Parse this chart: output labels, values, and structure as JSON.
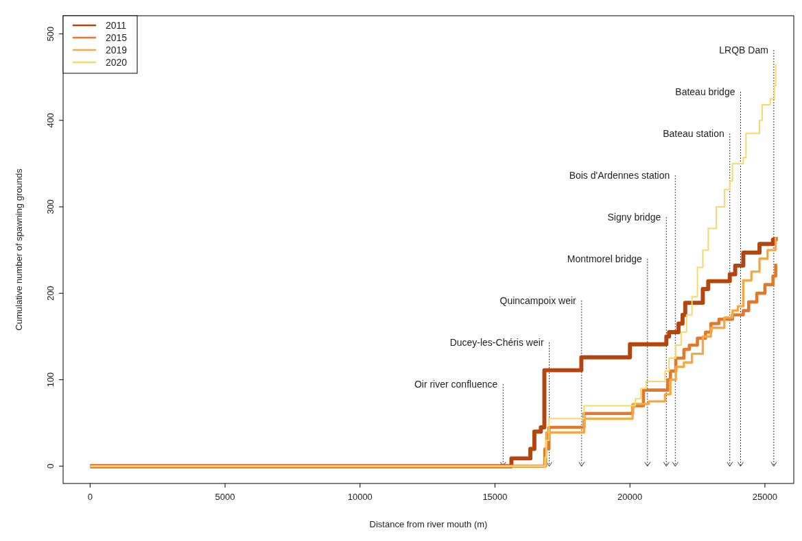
{
  "chart_data": {
    "type": "step",
    "xlabel": "Distance from river mouth (m)",
    "ylabel": "Cumulative number of spawning grounds",
    "xlim": [
      -1000,
      26070
    ],
    "xticks": [
      0,
      5000,
      10000,
      15000,
      20000,
      25000
    ],
    "ylim": [
      -20,
      521
    ],
    "yticks": [
      0,
      100,
      200,
      300,
      400,
      500
    ],
    "grid": false,
    "legend": "top left",
    "line_style": "solid",
    "marker": "none",
    "series": [
      {
        "name": "2011",
        "color": "#b5450f",
        "x": [
          0,
          15610,
          16310,
          16460,
          16700,
          16830,
          18200,
          20000,
          21350,
          21450,
          21800,
          21950,
          22050,
          22700,
          22900,
          23700,
          23900,
          24200,
          24800,
          25300,
          25400
        ],
        "values": [
          0,
          9,
          20,
          40,
          45,
          111,
          126,
          141,
          150,
          155,
          165,
          175,
          189,
          205,
          214,
          222,
          232,
          247,
          257,
          262,
          265
        ]
      },
      {
        "name": "2015",
        "color": "#e2782a",
        "x": [
          0,
          16850,
          17000,
          18300,
          20100,
          20500,
          21400,
          21500,
          21700,
          22000,
          22200,
          22500,
          22800,
          23000,
          23300,
          23800,
          24200,
          24400,
          24700,
          25000,
          25300,
          25400
        ],
        "values": [
          0,
          20,
          45,
          61,
          70,
          88,
          100,
          110,
          125,
          135,
          140,
          148,
          155,
          165,
          170,
          175,
          180,
          190,
          200,
          210,
          220,
          234
        ]
      },
      {
        "name": "2019",
        "color": "#f4a742",
        "x": [
          0,
          16900,
          18300,
          20100,
          20700,
          21300,
          21500,
          21700,
          22000,
          22300,
          22700,
          23000,
          23500,
          23800,
          24000,
          24200,
          24500,
          24800,
          25100,
          25400
        ],
        "values": [
          0,
          39,
          55,
          72,
          75,
          83,
          100,
          115,
          120,
          130,
          150,
          160,
          172,
          180,
          185,
          215,
          225,
          240,
          250,
          265
        ]
      },
      {
        "name": "2020",
        "color": "#f8d86b",
        "x": [
          0,
          16850,
          16900,
          17000,
          18300,
          20200,
          20400,
          20600,
          21300,
          21450,
          21700,
          21900,
          22100,
          22300,
          22500,
          22700,
          22900,
          23200,
          23500,
          23700,
          23800,
          24200,
          24300,
          24800,
          24900,
          25200,
          25350,
          25400
        ],
        "values": [
          0,
          10,
          30,
          55,
          70,
          78,
          90,
          98,
          110,
          125,
          140,
          155,
          175,
          196,
          230,
          250,
          275,
          300,
          320,
          330,
          350,
          357,
          385,
          400,
          418,
          425,
          440,
          465
        ]
      }
    ],
    "ref_lines": [
      {
        "axis": "x",
        "value": 15300,
        "label": "Oir river confluence",
        "color": "#333333",
        "line_style": "dotted"
      },
      {
        "axis": "x",
        "value": 17010,
        "label": "Ducey-les-Chéris weir",
        "color": "#333333",
        "line_style": "dotted"
      },
      {
        "axis": "x",
        "value": 18210,
        "label": "Quincampoix weir",
        "color": "#333333",
        "line_style": "dotted"
      },
      {
        "axis": "x",
        "value": 20650,
        "label": "Montmorel bridge",
        "color": "#333333",
        "line_style": "dotted"
      },
      {
        "axis": "x",
        "value": 21350,
        "label": "Signy bridge",
        "color": "#333333",
        "line_style": "dotted"
      },
      {
        "axis": "x",
        "value": 21680,
        "label": "Bois d'Ardennes station",
        "color": "#333333",
        "line_style": "dotted"
      },
      {
        "axis": "x",
        "value": 23700,
        "label": "Bateau station",
        "color": "#333333",
        "line_style": "dotted"
      },
      {
        "axis": "x",
        "value": 24100,
        "label": "Bateau bridge",
        "color": "#333333",
        "line_style": "dotted"
      },
      {
        "axis": "x",
        "value": 25330,
        "label": "LRQB Dam",
        "color": "#333333",
        "line_style": "dotted"
      }
    ]
  }
}
